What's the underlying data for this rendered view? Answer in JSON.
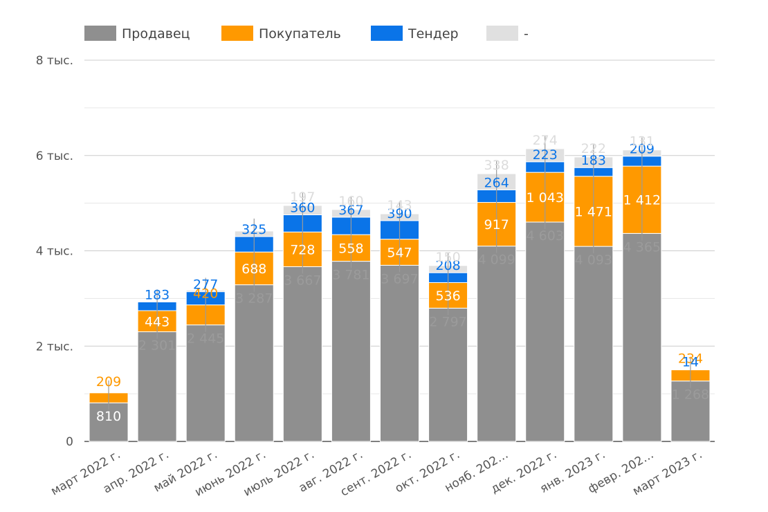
{
  "chart_data": {
    "type": "bar",
    "stacked": true,
    "categories": [
      "март 2022 г.",
      "апр. 2022 г.",
      "май 2022 г.",
      "июнь 2022 г.",
      "июль 2022 г.",
      "авг. 2022 г.",
      "сент. 2022 г.",
      "окт. 2022 г.",
      "нояб. 202…",
      "дек. 2022 г.",
      "янв. 2023 г.",
      "февр. 202…",
      "март 2023 г."
    ],
    "series": [
      {
        "name": "Продавец",
        "color": "#8f8f8f",
        "values": [
          810,
          2301,
          2445,
          3287,
          3667,
          3781,
          3697,
          2797,
          4099,
          4603,
          4093,
          4365,
          1268
        ],
        "labels": [
          "810",
          "2 301",
          "2 445",
          "3 287",
          "3 667",
          "3 781",
          "3 697",
          "2 797",
          "4 099",
          "4 603",
          "4 093",
          "4 365",
          "1 268"
        ]
      },
      {
        "name": "Покупатель",
        "color": "#ff9900",
        "values": [
          209,
          443,
          420,
          688,
          728,
          558,
          547,
          536,
          917,
          1043,
          1471,
          1412,
          234
        ],
        "labels": [
          "209",
          "443",
          "420",
          "688",
          "728",
          "558",
          "547",
          "536",
          "917",
          "1 043",
          "1 471",
          "1 412",
          "234"
        ]
      },
      {
        "name": "Тендер",
        "color": "#0a74e8",
        "values": [
          0,
          183,
          277,
          325,
          360,
          367,
          390,
          208,
          264,
          223,
          183,
          209,
          14
        ],
        "labels": [
          "",
          "183",
          "277",
          "325",
          "360",
          "367",
          "390",
          "208",
          "264",
          "223",
          "183",
          "209",
          "14"
        ]
      },
      {
        "name": "-",
        "color": "#e0e0e0",
        "values": [
          0,
          0,
          30,
          115,
          197,
          160,
          143,
          150,
          338,
          274,
          222,
          131,
          0
        ],
        "labels": [
          "",
          "",
          "",
          "",
          "197",
          "160",
          "143",
          "150",
          "338",
          "274",
          "222",
          "131",
          ""
        ]
      }
    ],
    "yticks": [
      0,
      2000,
      4000,
      6000,
      8000
    ],
    "ytick_labels": [
      "0",
      "2 тыс.",
      "4 тыс.",
      "6 тыс.",
      "8 тыс."
    ],
    "ylim": [
      0,
      8000
    ],
    "grid": true,
    "legend": "top-left"
  }
}
